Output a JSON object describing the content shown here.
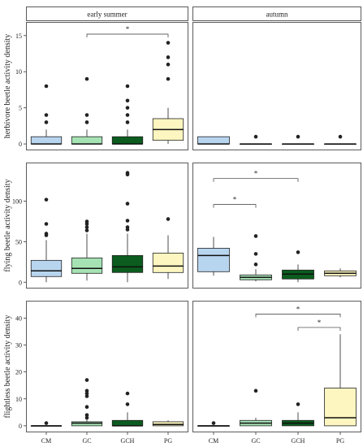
{
  "chart_data": {
    "type": "box",
    "facets": [
      "early summer",
      "autumn"
    ],
    "categories": [
      "CM",
      "GC",
      "GCH",
      "PG"
    ],
    "colors": {
      "CM": "#b8d5f0",
      "GC": "#a6e3b4",
      "GCH": "#0b5c1e",
      "PG": "#fdf6c0"
    },
    "panels": [
      {
        "ylabel": "herbivore beetle activity density",
        "ylim": [
          0,
          16
        ],
        "yticks": [
          0,
          5,
          10,
          15
        ],
        "facets": {
          "early summer": [
            {
              "cat": "CM",
              "min": 0,
              "q1": 0,
              "median": 0,
              "q3": 1,
              "max": 2,
              "outliers": [
                3,
                4,
                8
              ]
            },
            {
              "cat": "GC",
              "min": 0,
              "q1": 0,
              "median": 0,
              "q3": 1,
              "max": 2,
              "outliers": [
                3,
                4,
                9
              ]
            },
            {
              "cat": "GCH",
              "min": 0,
              "q1": 0,
              "median": 0,
              "q3": 1,
              "max": 2,
              "outliers": [
                3,
                4,
                5,
                6,
                8
              ]
            },
            {
              "cat": "PG",
              "min": 0,
              "q1": 0.5,
              "median": 2,
              "q3": 3.5,
              "max": 5,
              "outliers": [
                9,
                11,
                12,
                14
              ]
            }
          ],
          "autumn": [
            {
              "cat": "CM",
              "min": 0,
              "q1": 0,
              "median": 0,
              "q3": 1,
              "max": 1,
              "outliers": []
            },
            {
              "cat": "GC",
              "min": 0,
              "q1": 0,
              "median": 0,
              "q3": 0,
              "max": 0,
              "outliers": [
                1
              ]
            },
            {
              "cat": "GCH",
              "min": 0,
              "q1": 0,
              "median": 0,
              "q3": 0,
              "max": 0,
              "outliers": [
                1
              ]
            },
            {
              "cat": "PG",
              "min": 0,
              "q1": 0,
              "median": 0,
              "q3": 0,
              "max": 0,
              "outliers": [
                1
              ]
            }
          ]
        },
        "brackets": {
          "early summer": [
            {
              "from": "GC",
              "to": "PG",
              "y": 15.2,
              "label": "*"
            }
          ],
          "autumn": []
        }
      },
      {
        "ylabel": "flying beetle activity density",
        "ylim": [
          0,
          140
        ],
        "yticks": [
          0,
          50,
          100
        ],
        "facets": {
          "early summer": [
            {
              "cat": "CM",
              "min": 0,
              "q1": 7,
              "median": 14,
              "q3": 27,
              "max": 52,
              "outliers": [
                58,
                60,
                72,
                102
              ]
            },
            {
              "cat": "GC",
              "min": 2,
              "q1": 11,
              "median": 17,
              "q3": 30,
              "max": 60,
              "outliers": [
                64,
                68,
                72,
                75
              ]
            },
            {
              "cat": "GCH",
              "min": 0,
              "q1": 12,
              "median": 19,
              "q3": 33,
              "max": 60,
              "outliers": [
                65,
                68,
                76,
                97,
                133,
                135
              ]
            },
            {
              "cat": "PG",
              "min": 4,
              "q1": 12,
              "median": 20,
              "q3": 36,
              "max": 58,
              "outliers": [
                78
              ]
            }
          ],
          "autumn": [
            {
              "cat": "CM",
              "min": 8,
              "q1": 13,
              "median": 33,
              "q3": 42,
              "max": 56,
              "outliers": []
            },
            {
              "cat": "GC",
              "min": 1,
              "q1": 3,
              "median": 6,
              "q3": 9,
              "max": 16,
              "outliers": [
                22,
                35,
                57
              ]
            },
            {
              "cat": "GCH",
              "min": 0,
              "q1": 4,
              "median": 10,
              "q3": 15,
              "max": 22,
              "outliers": [
                37
              ]
            },
            {
              "cat": "PG",
              "min": 6,
              "q1": 8,
              "median": 11,
              "q3": 14,
              "max": 17,
              "outliers": []
            }
          ]
        },
        "brackets": {
          "early summer": [],
          "autumn": [
            {
              "from": "CM",
              "to": "GC",
              "y": 96,
              "label": "*"
            },
            {
              "from": "CM",
              "to": "GCH",
              "y": 128,
              "label": "*"
            }
          ]
        }
      },
      {
        "ylabel": "flightless beetle activity density",
        "ylim": [
          0,
          44
        ],
        "yticks": [
          0,
          10,
          20,
          30,
          40
        ],
        "facets": {
          "early summer": [
            {
              "cat": "CM",
              "min": 0,
              "q1": 0,
              "median": 0,
              "q3": 0,
              "max": 0,
              "outliers": [
                1
              ]
            },
            {
              "cat": "GC",
              "min": 0,
              "q1": 0,
              "median": 1,
              "q3": 1.5,
              "max": 2.5,
              "outliers": [
                3,
                4,
                7,
                11,
                12,
                13,
                17
              ]
            },
            {
              "cat": "GCH",
              "min": 0,
              "q1": 0,
              "median": 0,
              "q3": 2,
              "max": 5,
              "outliers": [
                8,
                12
              ]
            },
            {
              "cat": "PG",
              "min": 0,
              "q1": 0,
              "median": 0.5,
              "q3": 1.5,
              "max": 2,
              "outliers": []
            }
          ],
          "autumn": [
            {
              "cat": "CM",
              "min": 0,
              "q1": 0,
              "median": 0,
              "q3": 0,
              "max": 0,
              "outliers": [
                1
              ]
            },
            {
              "cat": "GC",
              "min": 0,
              "q1": 0,
              "median": 1,
              "q3": 2,
              "max": 3,
              "outliers": [
                13
              ]
            },
            {
              "cat": "GCH",
              "min": 0,
              "q1": 0,
              "median": 1,
              "q3": 2,
              "max": 5,
              "outliers": [
                8
              ]
            },
            {
              "cat": "PG",
              "min": 0,
              "q1": 0,
              "median": 3,
              "q3": 14,
              "max": 34,
              "outliers": []
            }
          ]
        },
        "brackets": {
          "early summer": [],
          "autumn": [
            {
              "from": "GCH",
              "to": "PG",
              "y": 36.5,
              "label": "*"
            },
            {
              "from": "GC",
              "to": "PG",
              "y": 41.5,
              "label": "*"
            }
          ]
        }
      }
    ]
  }
}
